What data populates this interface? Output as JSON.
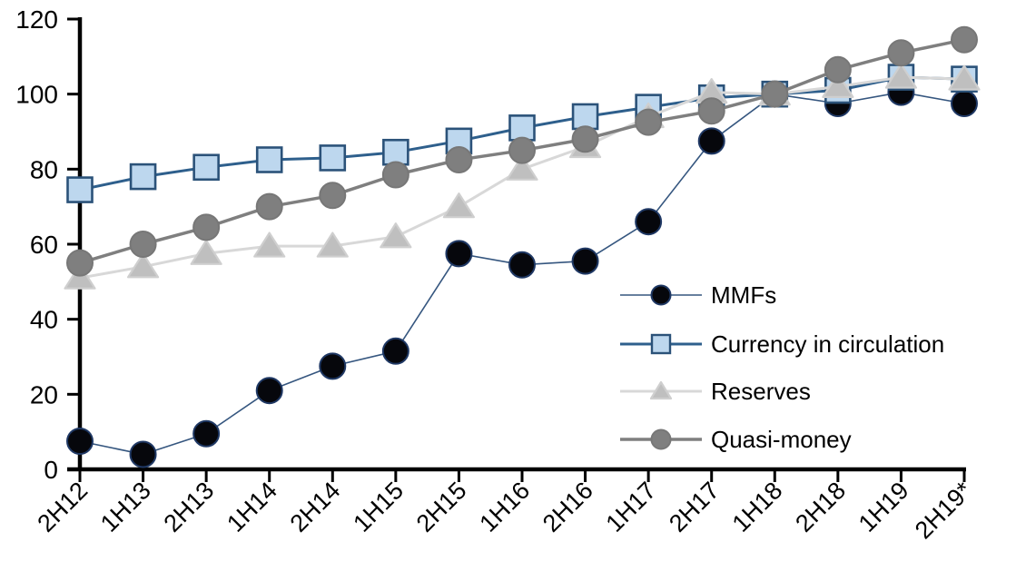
{
  "chart_data": {
    "type": "line",
    "categories": [
      "2H12",
      "1H13",
      "2H13",
      "1H14",
      "2H14",
      "1H15",
      "2H15",
      "1H16",
      "2H16",
      "1H17",
      "2H17",
      "1H18",
      "2H18",
      "1H19",
      "2H19*"
    ],
    "series": [
      {
        "name": "MMFs",
        "marker": "circle",
        "line_color": "#35567f",
        "line_width": 1.6,
        "marker_fill": "#06070c",
        "marker_stroke": "#1f3864",
        "values": [
          7.5,
          4,
          9.5,
          21,
          27.5,
          31.5,
          57.5,
          54.5,
          55.5,
          66,
          87.5,
          100,
          97.5,
          100.5,
          97.5
        ]
      },
      {
        "name": "Currency in circulation",
        "marker": "square",
        "line_color": "#2e5f8c",
        "line_width": 3,
        "marker_fill": "#bdd7ee",
        "marker_stroke": "#2b5279",
        "values": [
          74.5,
          78,
          80.5,
          82.5,
          83,
          84.5,
          87.5,
          91,
          94,
          96.5,
          99,
          100,
          101,
          104.5,
          104
        ]
      },
      {
        "name": "Reserves",
        "marker": "triangle",
        "line_color": "#d8d8d8",
        "line_width": 3,
        "marker_fill": "#bfbfbf",
        "marker_stroke": "#cfcfcf",
        "values": [
          51,
          54,
          57.5,
          59.5,
          59.5,
          62,
          70,
          80,
          86,
          94,
          100.5,
          100,
          102,
          104.5,
          104
        ]
      },
      {
        "name": "Quasi-money",
        "marker": "circle",
        "line_color": "#7f7f7f",
        "line_width": 3.5,
        "marker_fill": "#7f7f7f",
        "marker_stroke": "#777777",
        "values": [
          55,
          60,
          64.5,
          70,
          73,
          78.5,
          82.5,
          85,
          88,
          92.5,
          95.5,
          100,
          106.5,
          111,
          114.5
        ]
      }
    ],
    "xlabel": "",
    "ylabel": "",
    "ylim": [
      0,
      120
    ],
    "yticks": [
      0,
      20,
      40,
      60,
      80,
      100,
      120
    ],
    "x_tick_rotation_deg": 45,
    "grid": false,
    "legend": {
      "position": "inside-middle-right",
      "entries": [
        "MMFs",
        "Currency in circulation",
        "Reserves",
        "Quasi-money"
      ]
    },
    "background": "#ffffff",
    "axis_color": "#000000",
    "text_color": "#000000"
  }
}
